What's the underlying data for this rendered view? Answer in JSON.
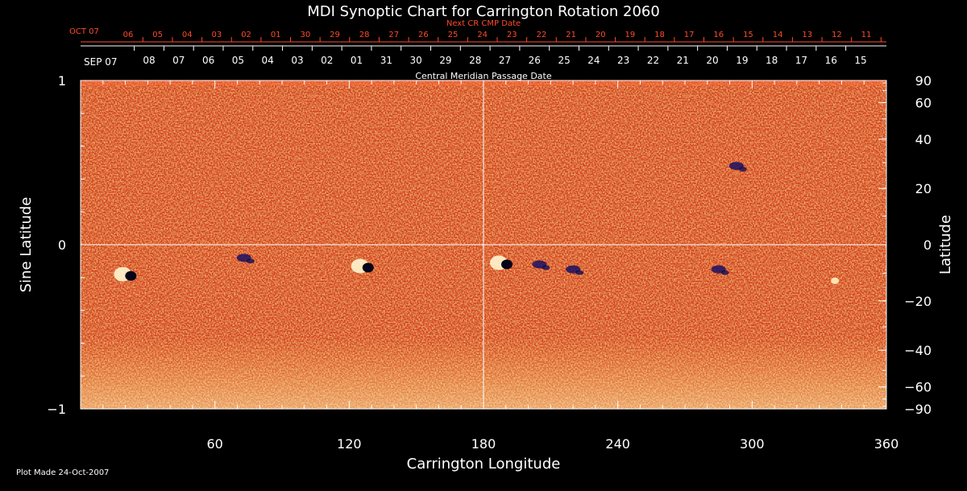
{
  "chart_data": {
    "type": "heatmap",
    "title": "MDI Synoptic Chart for Carrington Rotation 2060",
    "xlabel": "Carrington Longitude",
    "ylabel": "Sine Latitude",
    "ylabel_right": "Latitude",
    "xlim": [
      0,
      360
    ],
    "ylim": [
      -1,
      1
    ],
    "x_ticks": [
      60,
      120,
      180,
      240,
      300,
      360
    ],
    "y_ticks": [
      {
        "value": 1,
        "label": "1"
      },
      {
        "value": 0,
        "label": "0"
      },
      {
        "value": -1,
        "label": "−1"
      }
    ],
    "right_ticks": [
      {
        "deg": 90,
        "label": "90"
      },
      {
        "deg": 60,
        "label": "60"
      },
      {
        "deg": 40,
        "label": "40"
      },
      {
        "deg": 20,
        "label": "20"
      },
      {
        "deg": 0,
        "label": "0"
      },
      {
        "deg": -20,
        "label": "−20"
      },
      {
        "deg": -40,
        "label": "−40"
      },
      {
        "deg": -60,
        "label": "−60"
      },
      {
        "deg": -90,
        "label": "−90"
      }
    ],
    "cmp_axis": {
      "title": "Central Meridian Passage Date",
      "first_label": "SEP 07",
      "dates": [
        "08",
        "07",
        "06",
        "05",
        "04",
        "03",
        "02",
        "01",
        "31",
        "30",
        "29",
        "28",
        "27",
        "26",
        "25",
        "24",
        "23",
        "22",
        "21",
        "20",
        "19",
        "18",
        "17",
        "16",
        "15"
      ]
    },
    "next_cmp_axis": {
      "title": "Next CR CMP Date",
      "first_label": "OCT 07",
      "dates": [
        "06",
        "05",
        "04",
        "03",
        "02",
        "01",
        "30",
        "29",
        "28",
        "27",
        "26",
        "25",
        "24",
        "23",
        "22",
        "21",
        "20",
        "19",
        "18",
        "17",
        "16",
        "15",
        "14",
        "13",
        "12",
        "11"
      ]
    },
    "grid": "crosshair at 180° longitude and equator",
    "colors": {
      "background": "#000000",
      "field": "#e2461b",
      "positive": "#ffe9a0",
      "negative": "#1a1060",
      "axes": "#ffffff",
      "next_axis": "#ff4a2a"
    },
    "active_regions": [
      {
        "lon": 189,
        "sinlat": -0.11,
        "polarity": "mixed"
      },
      {
        "lon": 127,
        "sinlat": -0.13,
        "polarity": "mixed"
      },
      {
        "lon": 205,
        "sinlat": -0.12,
        "polarity": "negative"
      },
      {
        "lon": 220,
        "sinlat": -0.15,
        "polarity": "negative"
      },
      {
        "lon": 285,
        "sinlat": -0.15,
        "polarity": "negative"
      },
      {
        "lon": 21,
        "sinlat": -0.18,
        "polarity": "mixed"
      },
      {
        "lon": 73,
        "sinlat": -0.08,
        "polarity": "negative"
      },
      {
        "lon": 337,
        "sinlat": -0.22,
        "polarity": "positive"
      },
      {
        "lon": 293,
        "sinlat": 0.48,
        "polarity": "negative"
      }
    ]
  },
  "footer": {
    "plot_made": "Plot Made 24-Oct-2007"
  }
}
